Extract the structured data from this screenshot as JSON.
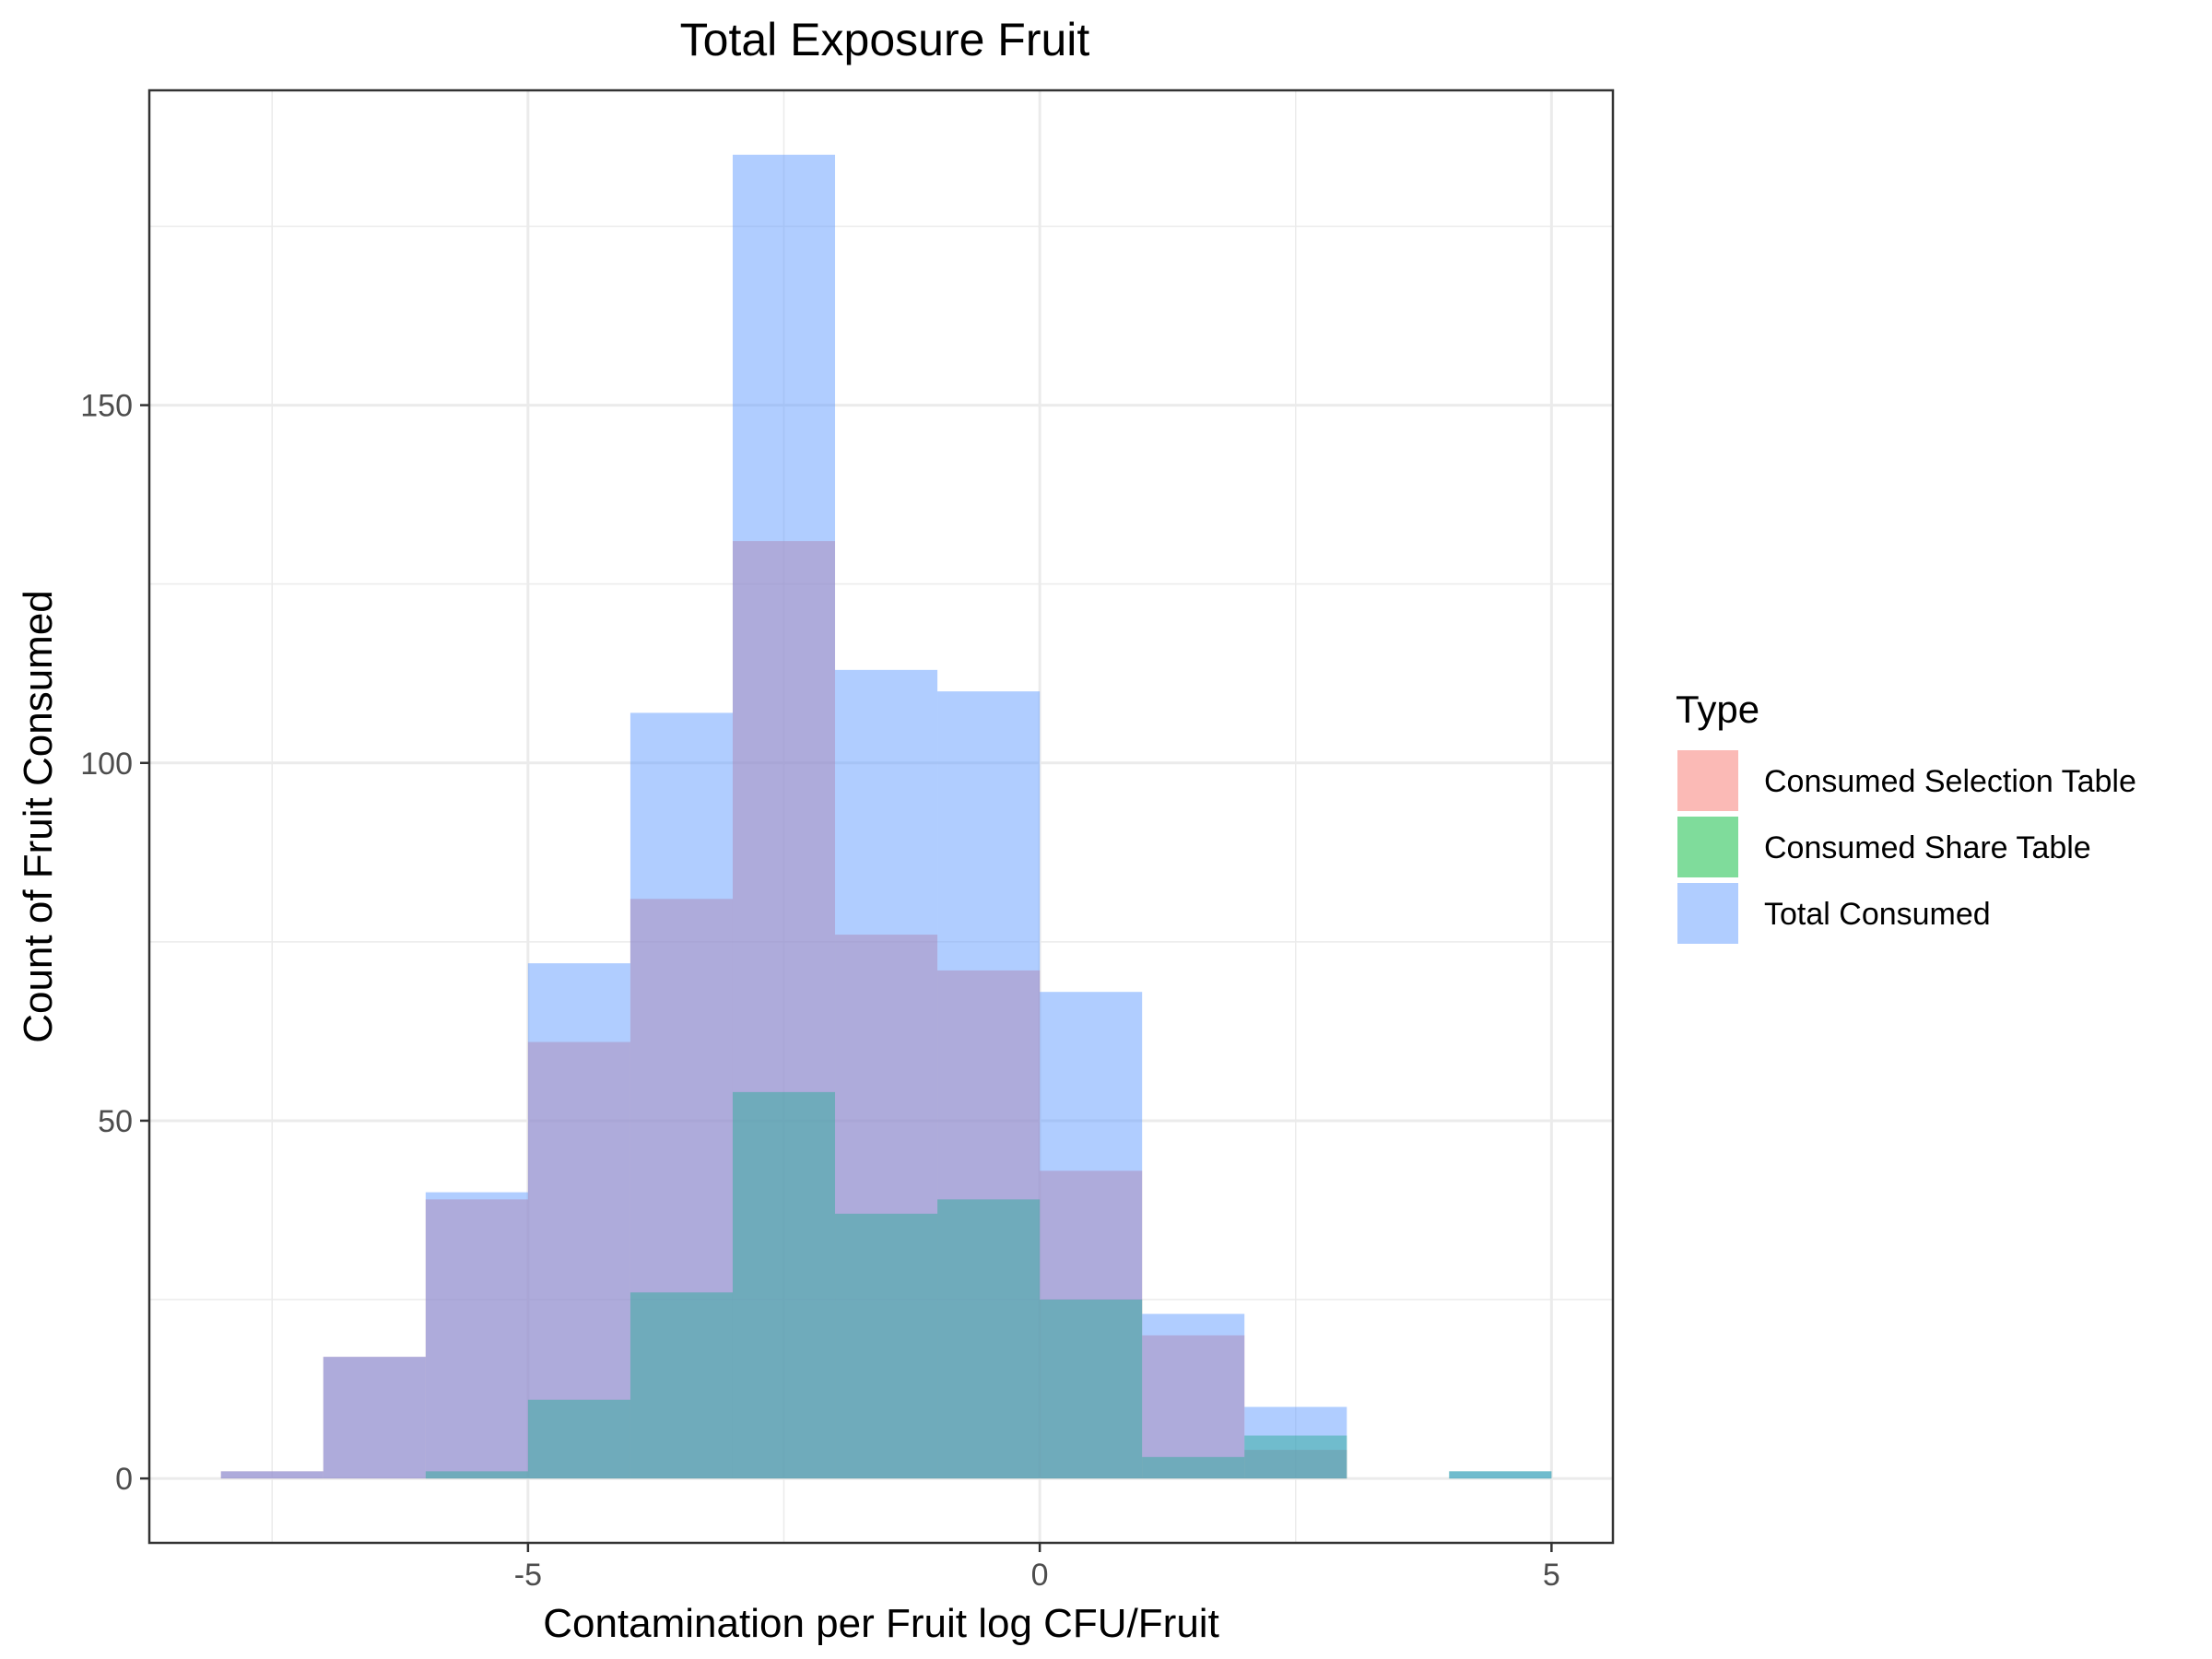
{
  "chart_data": {
    "type": "histogram",
    "title": "Total Exposure Fruit",
    "xlabel": "Contamination per Fruit log CFU/Fruit",
    "ylabel": "Count of Fruit Consumed",
    "xlim": [
      -8.7,
      5.6
    ],
    "ylim": [
      -9,
      194
    ],
    "x_ticks": [
      -5,
      0,
      5
    ],
    "x_tick_labels": [
      "-5",
      "0",
      "5"
    ],
    "y_ticks": [
      0,
      50,
      100,
      150
    ],
    "y_tick_labels": [
      "0",
      "50",
      "100",
      "150"
    ],
    "bin_width": 1,
    "bin_starts": [
      -8,
      -7,
      -6,
      -5,
      -4,
      -3,
      -2,
      -1,
      0,
      1,
      2,
      3,
      4
    ],
    "grid": true,
    "legend": {
      "title": "Type",
      "position": "right",
      "entries": [
        "Consumed Selection Table",
        "Consumed Share Table",
        "Total Consumed"
      ]
    },
    "series": [
      {
        "name": "Consumed Selection Table",
        "color": "#F8766D",
        "values": [
          1,
          17,
          39,
          61,
          81,
          131,
          76,
          71,
          43,
          20,
          4,
          0,
          0
        ]
      },
      {
        "name": "Consumed Share Table",
        "color": "#00BA38",
        "values": [
          0,
          0,
          1,
          11,
          26,
          54,
          37,
          39,
          25,
          3,
          6,
          0,
          1
        ]
      },
      {
        "name": "Total Consumed",
        "color": "#619CFF",
        "values": [
          1,
          17,
          40,
          72,
          107,
          185,
          113,
          110,
          68,
          23,
          10,
          0,
          1
        ]
      }
    ]
  }
}
